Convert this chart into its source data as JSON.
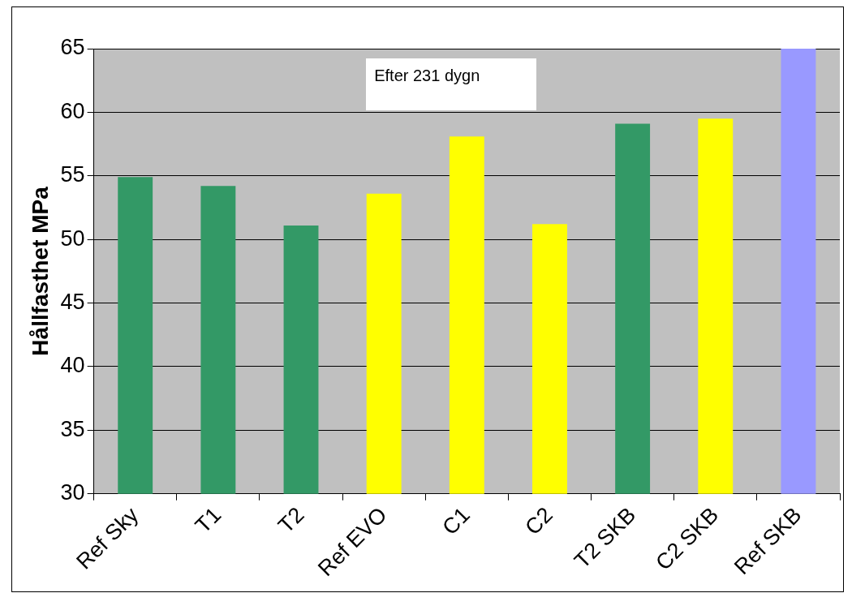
{
  "chart_data": {
    "type": "bar",
    "ylabel": "Hållfasthet MPa",
    "annotations": [
      "Efter 231 dygn"
    ],
    "categories": [
      "Ref Sky",
      "T1",
      "T2",
      "Ref EVO",
      "C1",
      "C2",
      "T2 SKB",
      "C2 SKB",
      "Ref SKB"
    ],
    "values": [
      54.9,
      54.2,
      51.1,
      53.6,
      58.1,
      51.2,
      59.1,
      59.5,
      65
    ],
    "colors": [
      "#339966",
      "#339966",
      "#339966",
      "#ffff00",
      "#ffff00",
      "#ffff00",
      "#339966",
      "#ffff00",
      "#9999ff"
    ],
    "ylim": [
      30,
      65
    ],
    "yticks": [
      30,
      35,
      40,
      45,
      50,
      55,
      60,
      65
    ],
    "grid": "y",
    "legend": false
  }
}
